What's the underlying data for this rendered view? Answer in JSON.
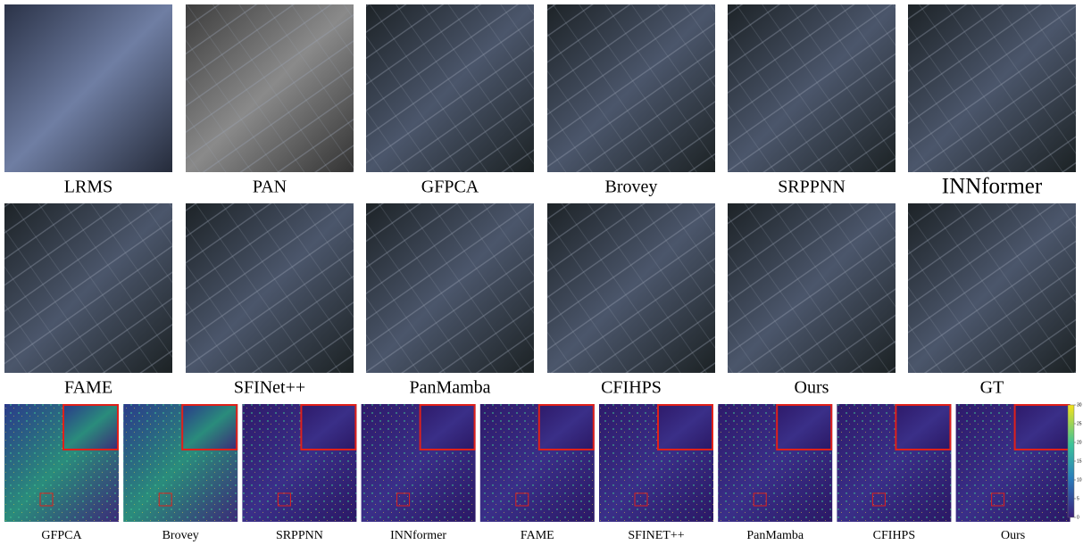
{
  "rows": [
    {
      "labels": [
        "LRMS",
        "PAN",
        "GFPCA",
        "Brovey",
        "SRPPNN",
        "INNformer"
      ]
    },
    {
      "labels": [
        "FAME",
        "SFINet++",
        "PanMamba",
        "CFIHPS",
        "Ours",
        "GT"
      ]
    }
  ],
  "error_maps": {
    "labels": [
      "GFPCA",
      "Brovey",
      "SRPPNN",
      "INNformer",
      "FAME",
      "SFINET++",
      "PanMamba",
      "CFIHPS",
      "Ours"
    ],
    "colorbar": {
      "ticks": [
        0,
        5,
        10,
        15,
        20,
        25,
        30
      ]
    }
  }
}
